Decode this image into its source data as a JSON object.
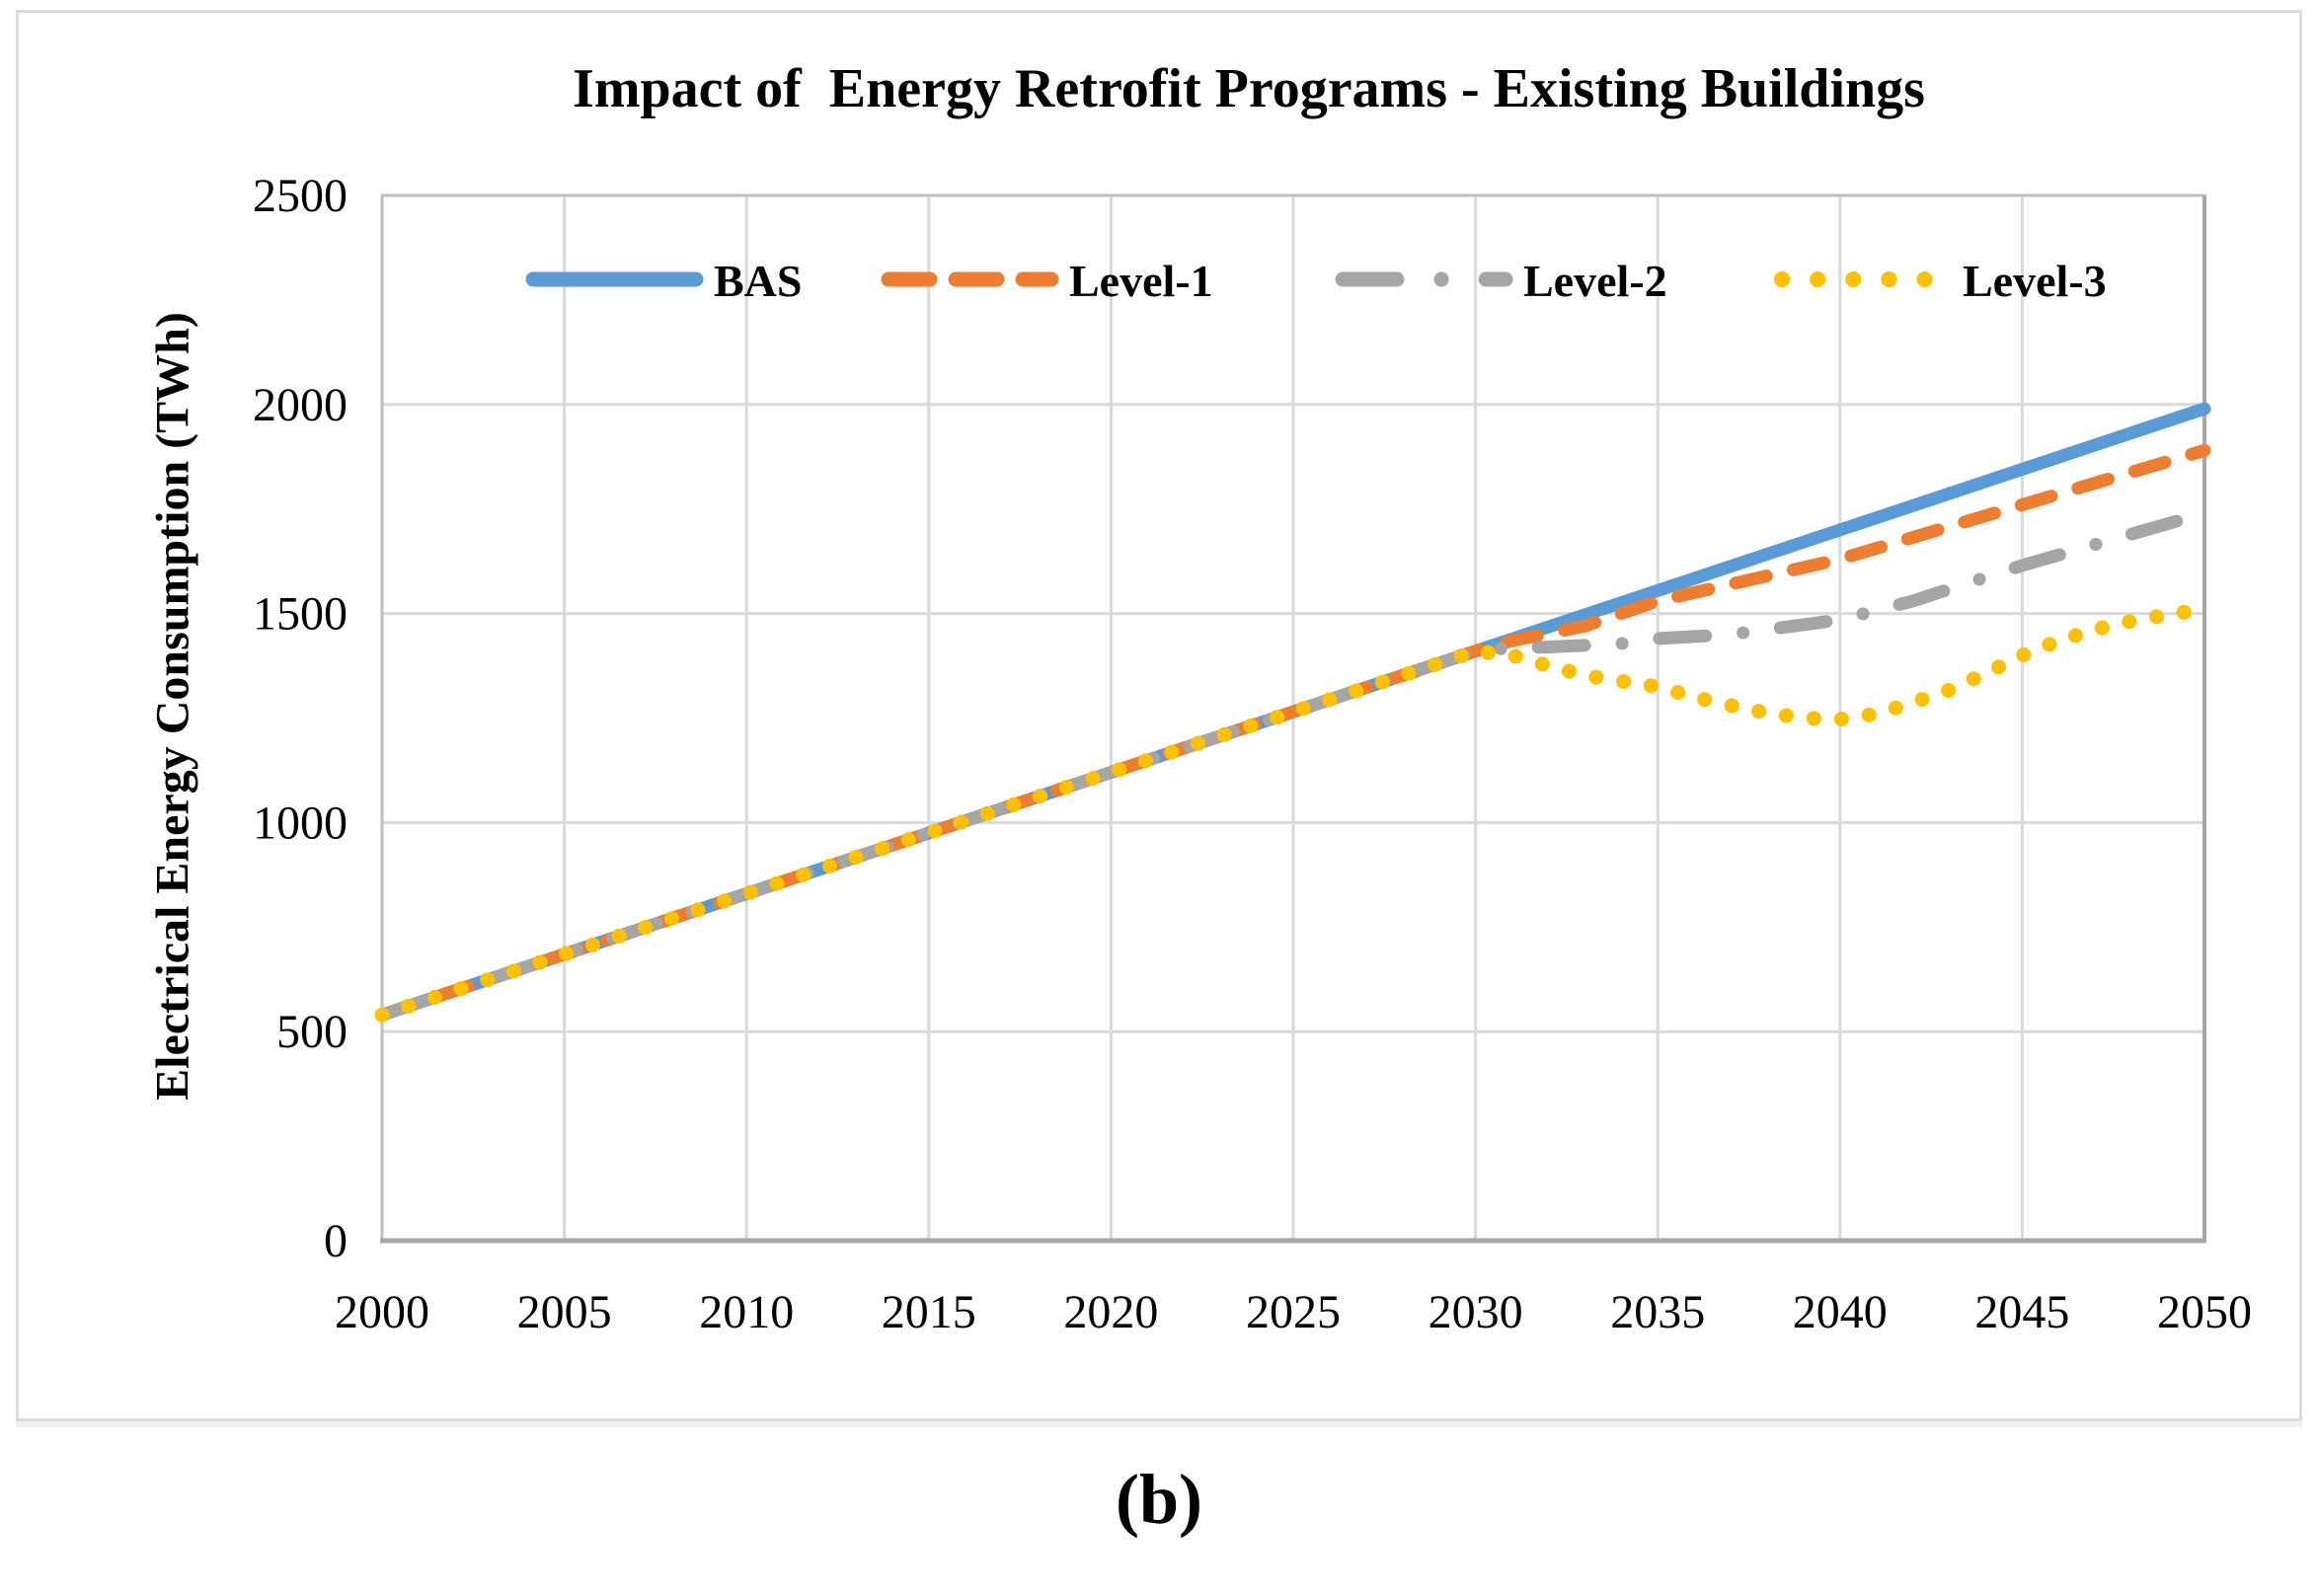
{
  "figure": {
    "title": "Impact of  Energy Retrofit Programs - Existing Buildings",
    "y_axis_title": "Electrical Energy Consumption (TWh)",
    "caption": "(b)"
  },
  "colors": {
    "bas": "#5B9BD5",
    "level1": "#ED7D31",
    "level2": "#A5A5A5",
    "level3": "#FFC000",
    "gridline": "#D9D9D9",
    "plot_border": "#BFBFBF",
    "axis_line": "#A6A6A6",
    "text": "#000000"
  },
  "chart_data": {
    "type": "line",
    "title": "Impact of  Energy Retrofit Programs - Existing Buildings",
    "xlabel": "",
    "ylabel": "Electrical Energy Consumption (TWh)",
    "xlim": [
      2000,
      2050
    ],
    "ylim": [
      0,
      2500
    ],
    "x_ticks": [
      2000,
      2005,
      2010,
      2015,
      2020,
      2025,
      2030,
      2035,
      2040,
      2045,
      2050
    ],
    "y_ticks": [
      0,
      500,
      1000,
      1500,
      2000,
      2500
    ],
    "grid": true,
    "legend_position": "top-center-inside",
    "legend": [
      "BAS",
      "Level-1",
      "Level-2",
      "Level-3"
    ],
    "series": [
      {
        "name": "BAS",
        "color": "#5B9BD5",
        "style": "solid",
        "x": [
          2000,
          2005,
          2010,
          2015,
          2020,
          2025,
          2030,
          2035,
          2040,
          2045,
          2050
        ],
        "values": [
          540,
          685,
          830,
          975,
          1120,
          1265,
          1410,
          1555,
          1700,
          1845,
          1990
        ]
      },
      {
        "name": "Level-1",
        "color": "#ED7D31",
        "style": "dashed",
        "x": [
          2000,
          2030,
          2031,
          2033,
          2035,
          2040,
          2045,
          2050
        ],
        "values": [
          540,
          1410,
          1435,
          1470,
          1530,
          1630,
          1760,
          1890
        ]
      },
      {
        "name": "Level-2",
        "color": "#A5A5A5",
        "style": "dash-dot",
        "x": [
          2000,
          2030,
          2031,
          2032,
          2034,
          2035,
          2037,
          2040,
          2042,
          2045,
          2047,
          2050
        ],
        "values": [
          540,
          1410,
          1418,
          1420,
          1428,
          1440,
          1450,
          1485,
          1530,
          1615,
          1665,
          1740
        ]
      },
      {
        "name": "Level-3",
        "color": "#FFC000",
        "style": "dotted",
        "x": [
          2000,
          2030,
          2031,
          2032,
          2033,
          2034,
          2035,
          2036,
          2037,
          2038,
          2039,
          2040,
          2041,
          2042,
          2043,
          2044,
          2045,
          2046,
          2047,
          2048,
          2049,
          2050
        ],
        "values": [
          540,
          1410,
          1400,
          1375,
          1352,
          1338,
          1325,
          1300,
          1280,
          1262,
          1250,
          1247,
          1260,
          1287,
          1317,
          1357,
          1400,
          1435,
          1462,
          1482,
          1497,
          1510
        ]
      }
    ]
  }
}
